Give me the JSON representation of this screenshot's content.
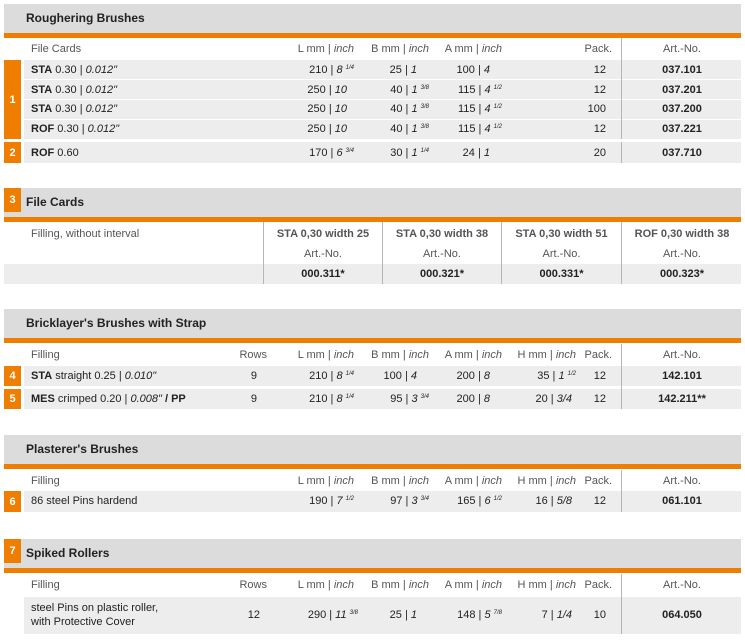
{
  "roughering": {
    "title": "Roughering Brushes",
    "headers": {
      "name": "File Cards",
      "l": "L mm | ",
      "l_i": "inch",
      "b": "B mm | ",
      "b_i": "inch",
      "a": "A mm | ",
      "a_i": "inch",
      "pack": "Pack.",
      "art": "Art.-No."
    },
    "group1": "1",
    "group2": "2",
    "rows": [
      {
        "code": "STA",
        "spec": " 0.30 | ",
        "spec_i": "0.012\"",
        "l": "210 | ",
        "l_i": "8",
        "l_s": "1/4",
        "b": "25 | ",
        "b_i": "1",
        "b_s": "",
        "a": "100 | ",
        "a_i": "4",
        "a_s": "",
        "pack": "12",
        "art": "037.101"
      },
      {
        "code": "STA",
        "spec": " 0.30 | ",
        "spec_i": "0.012\"",
        "l": "250 | ",
        "l_i": "10",
        "l_s": "",
        "b": "40 | ",
        "b_i": "1",
        "b_s": "3/8",
        "a": "115 | ",
        "a_i": "4",
        "a_s": "1/2",
        "pack": "12",
        "art": "037.201"
      },
      {
        "code": "STA",
        "spec": " 0.30 | ",
        "spec_i": "0.012\"",
        "l": "250 | ",
        "l_i": "10",
        "l_s": "",
        "b": "40 | ",
        "b_i": "1",
        "b_s": "3/8",
        "a": "115 | ",
        "a_i": "4",
        "a_s": "1/2",
        "pack": "100",
        "art": "037.200"
      },
      {
        "code": "ROF",
        "spec": " 0.30 | ",
        "spec_i": "0.012\"",
        "l": "250 | ",
        "l_i": "10",
        "l_s": "",
        "b": "40 | ",
        "b_i": "1",
        "b_s": "3/8",
        "a": "115 | ",
        "a_i": "4",
        "a_s": "1/2",
        "pack": "12",
        "art": "037.221"
      },
      {
        "code": "ROF",
        "spec": " 0.60",
        "spec_i": "",
        "l": "170 | ",
        "l_i": "6",
        "l_s": "3/4",
        "b": "30 | ",
        "b_i": "1",
        "b_s": "1/4",
        "a": "24 | ",
        "a_i": "1",
        "a_s": "",
        "pack": "20",
        "art": "037.710"
      }
    ]
  },
  "filecards": {
    "num": "3",
    "title": "File Cards",
    "filling": "Filling, without interval",
    "artno": "Art.-No.",
    "cols": [
      {
        "name": "STA 0,30 width 25",
        "art": "000.311*"
      },
      {
        "name": "STA 0,30 width 38",
        "art": "000.321*"
      },
      {
        "name": "STA 0,30 width 51",
        "art": "000.331*"
      },
      {
        "name": "ROF 0,30 width 38",
        "art": "000.323*"
      }
    ]
  },
  "bricklayer": {
    "title": "Bricklayer's Brushes with Strap",
    "headers": {
      "name": "Filling",
      "rows": "Rows",
      "l": "L mm | ",
      "l_i": "inch",
      "b": "B mm | ",
      "b_i": "inch",
      "a": "A mm | ",
      "a_i": "inch",
      "h": "H mm | ",
      "h_i": "inch",
      "pack": "Pack.",
      "art": "Art.-No."
    },
    "rows": [
      {
        "num": "4",
        "code": "STA",
        "spec": " straight 0.25 | ",
        "spec_i": "0.010\"",
        "spec_b": "",
        "rows": "9",
        "l": "210 | ",
        "l_i": "8",
        "l_s": "1/4",
        "b": "100 | ",
        "b_i": "4",
        "b_s": "",
        "a": "200 | ",
        "a_i": "8",
        "h": "35 | ",
        "h_i": "1",
        "h_s": "1/2",
        "pack": "12",
        "art": "142.101"
      },
      {
        "num": "5",
        "code": "MES",
        "spec": " crimped 0.20 | ",
        "spec_i": "0.008\"",
        "spec_b": " / PP",
        "rows": "9",
        "l": "210 | ",
        "l_i": "8",
        "l_s": "1/4",
        "b": "95 | ",
        "b_i": "3",
        "b_s": "3/4",
        "a": "200 | ",
        "a_i": "8",
        "h": "20 | ",
        "h_i": "3/4",
        "h_s": "",
        "pack": "12",
        "art": "142.211**"
      }
    ]
  },
  "plasterer": {
    "title": "Plasterer's Brushes",
    "headers": {
      "name": "Filling",
      "l": "L mm | ",
      "l_i": "inch",
      "b": "B mm | ",
      "b_i": "inch",
      "a": "A mm | ",
      "a_i": "inch",
      "h": "H mm | ",
      "h_i": "inch",
      "pack": "Pack.",
      "art": "Art.-No."
    },
    "row": {
      "num": "6",
      "name": "86 steel Pins hardend",
      "l": "190 | ",
      "l_i": "7",
      "l_s": "1/2",
      "b": "97 | ",
      "b_i": "3",
      "b_s": "3/4",
      "a": "165 | ",
      "a_i": "6",
      "a_s": "1/2",
      "h": "16 | ",
      "h_i": "5/8",
      "pack": "12",
      "art": "061.101"
    }
  },
  "spiked": {
    "num": "7",
    "title": "Spiked Rollers",
    "headers": {
      "name": "Filling",
      "rows": "Rows",
      "l": "L mm | ",
      "l_i": "inch",
      "b": "B mm | ",
      "b_i": "inch",
      "a": "A mm | ",
      "a_i": "inch",
      "h": "H mm | ",
      "h_i": "inch",
      "pack": "Pack.",
      "art": "Art.-No."
    },
    "row": {
      "name1": "steel Pins on plastic roller,",
      "name2": "with Protective Cover",
      "rows": "12",
      "l": "290 | ",
      "l_i": "11",
      "l_s": "3/8",
      "b": "25 | ",
      "b_i": "1",
      "a": "148 | ",
      "a_i": "5",
      "a_s": "7/8",
      "h": "7 | ",
      "h_i": "1/4",
      "pack": "10",
      "art": "064.050"
    }
  },
  "colors": {
    "accent": "#ef7d00",
    "header_bg": "#dcdcdc",
    "row_bg": "#ededed"
  }
}
